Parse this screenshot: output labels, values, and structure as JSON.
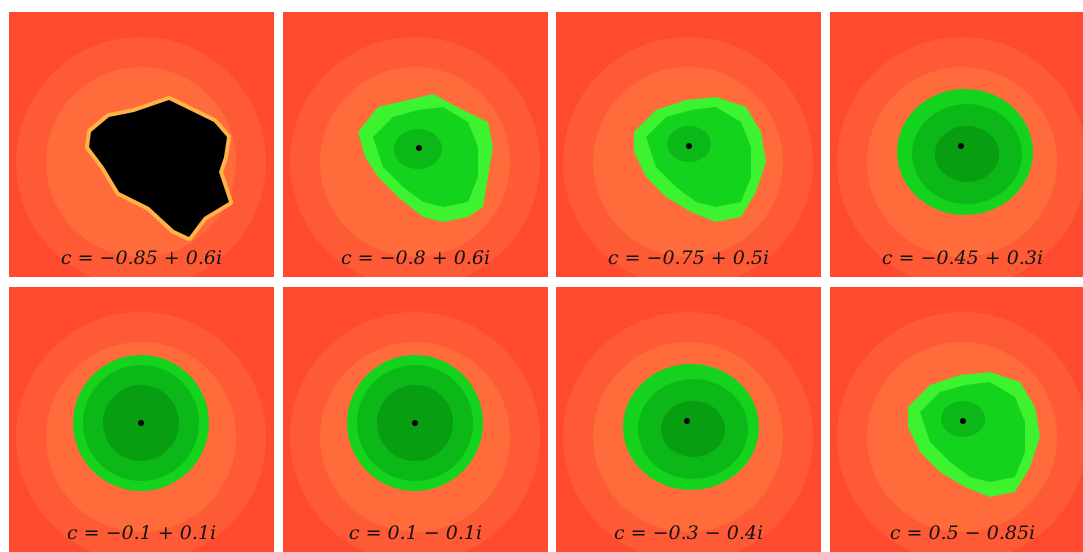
{
  "colors": {
    "bg_outer": "#ff4a30",
    "bg_mid": "#ff5a36",
    "bg_inner": "#ff6b3a",
    "halo": "#ff8a3c",
    "fill_black": "#000000",
    "green_light": "#3df22e",
    "green_mid": "#14d31c",
    "green_dark": "#0bb817",
    "green_darker": "#079e12",
    "edge_yellow": "#ffe45a"
  },
  "panels": [
    {
      "caption": "c = −0.85 + 0.6i",
      "style": "black"
    },
    {
      "caption": "c = −0.8 + 0.6i",
      "style": "green-irregular"
    },
    {
      "caption": "c = −0.75 + 0.5i",
      "style": "green-irregular"
    },
    {
      "caption": "c = −0.45 + 0.3i",
      "style": "green-rounded"
    },
    {
      "caption": "c = −0.1 + 0.1i",
      "style": "green-circle"
    },
    {
      "caption": "c = 0.1 − 0.1i",
      "style": "green-circle"
    },
    {
      "caption": "c = −0.3 − 0.4i",
      "style": "green-rounded"
    },
    {
      "caption": "c = 0.5 − 0.85i",
      "style": "green-irregular"
    }
  ]
}
